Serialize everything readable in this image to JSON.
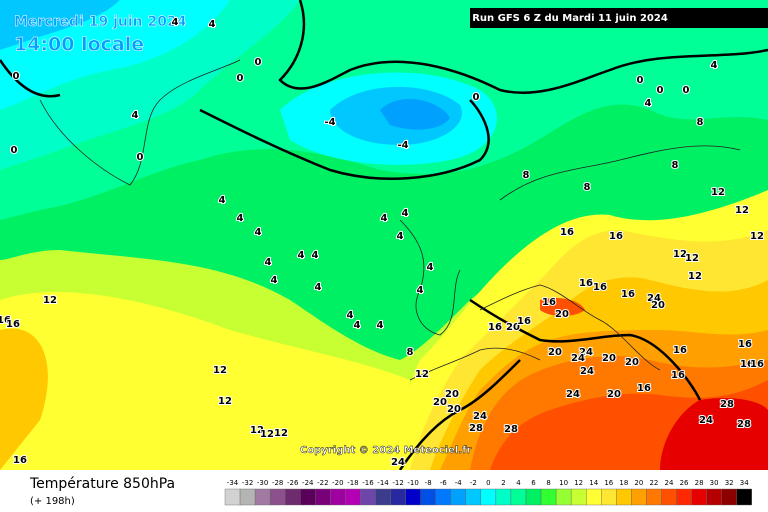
{
  "header": {
    "date": "Mercredi 19 juin 2024",
    "time": "14:00 locale",
    "run": "Run GFS 6 Z du Mardi 11 juin 2024"
  },
  "copyright": "Copyright © 2024 Meteociel.fr",
  "footer": {
    "title": "Température 850hPa",
    "lead": "(+ 198h)"
  },
  "legend": {
    "values": [
      -34,
      -32,
      -30,
      -28,
      -26,
      -24,
      -22,
      -20,
      -18,
      -16,
      -14,
      -12,
      -10,
      -8,
      -6,
      -4,
      -2,
      0,
      2,
      4,
      6,
      8,
      10,
      12,
      14,
      16,
      18,
      20,
      22,
      24,
      26,
      28,
      30,
      32,
      34
    ],
    "colors": [
      "#d2d2d2",
      "#b4b4b4",
      "#a07aa0",
      "#8c508c",
      "#6e2c6e",
      "#5a005a",
      "#780078",
      "#a000a0",
      "#b400b4",
      "#6e46aa",
      "#3c3c8c",
      "#2828a0",
      "#0000c8",
      "#0050e6",
      "#0078ff",
      "#00a0ff",
      "#00c8ff",
      "#00ffff",
      "#00ffc8",
      "#00ff96",
      "#00f064",
      "#32ff32",
      "#96ff32",
      "#c8ff32",
      "#ffff32",
      "#ffe632",
      "#ffc800",
      "#ffa000",
      "#ff7800",
      "#ff5000",
      "#ff2800",
      "#e60000",
      "#b40000",
      "#8c0000",
      "#000000"
    ]
  },
  "contour_labels": [
    4,
    4,
    0,
    0,
    0,
    4,
    0,
    0,
    -4,
    -4,
    0,
    0,
    0,
    0,
    4,
    4,
    8,
    8,
    12,
    12,
    12,
    4,
    4,
    4,
    4,
    4,
    4,
    4,
    4,
    4,
    4,
    4,
    4,
    4,
    4,
    4,
    4,
    8,
    12,
    8,
    8,
    16,
    16,
    12,
    12,
    12,
    16,
    16,
    16,
    24,
    20,
    16,
    20,
    16,
    20,
    16,
    20,
    24,
    20,
    24,
    24,
    20,
    16,
    16,
    16,
    16,
    16,
    16,
    20,
    24,
    20,
    20,
    20,
    24,
    28,
    28,
    28,
    28,
    24,
    12,
    12,
    12,
    12,
    12,
    12,
    16,
    16,
    16,
    24
  ]
}
